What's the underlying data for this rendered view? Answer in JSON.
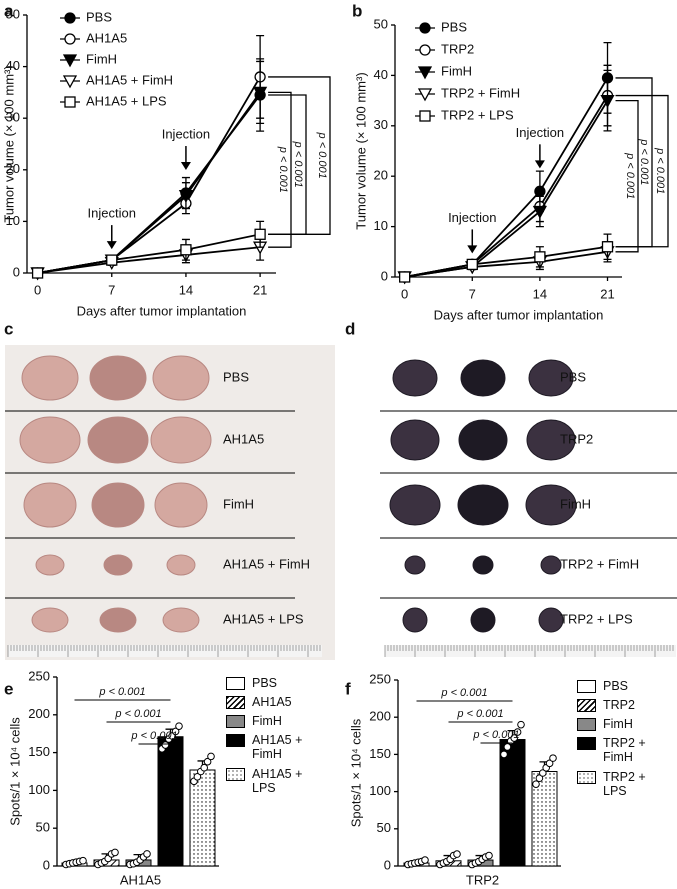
{
  "panel_labels": [
    "a",
    "b",
    "c",
    "d",
    "e",
    "f"
  ],
  "chart_data": [
    {
      "type": "line",
      "xlabel": "Days after tumor implantation",
      "ylabel": "Tumor volume (× 100 mm³)",
      "x": [
        0,
        7,
        14,
        21
      ],
      "xlim": [
        -1,
        22.5
      ],
      "xticks": [
        0,
        7,
        14,
        21
      ],
      "ylim": [
        0,
        50
      ],
      "yticks": [
        0,
        10,
        20,
        30,
        40,
        50
      ],
      "series": [
        {
          "name": "PBS",
          "marker": "circle-filled",
          "color": "#000000",
          "values": [
            0,
            2.5,
            15.5,
            34.5
          ],
          "errors": [
            0.3,
            0.5,
            3,
            7
          ]
        },
        {
          "name": "AH1A5",
          "marker": "circle-open",
          "color": "#000000",
          "values": [
            0,
            2.5,
            13.5,
            38
          ],
          "errors": [
            0.3,
            0.5,
            2,
            8
          ]
        },
        {
          "name": "FimH",
          "marker": "triangle-filled",
          "color": "#000000",
          "values": [
            0,
            2.5,
            15,
            35
          ],
          "errors": [
            0.3,
            0.5,
            2.5,
            6
          ]
        },
        {
          "name": "AH1A5 + FimH",
          "marker": "triangle-open",
          "color": "#000000",
          "values": [
            0,
            2,
            3.5,
            5
          ],
          "errors": [
            0.3,
            0.5,
            1.5,
            2.5
          ]
        },
        {
          "name": "AH1A5 + LPS",
          "marker": "square-open",
          "color": "#000000",
          "values": [
            0,
            2.5,
            4.5,
            7.5
          ],
          "errors": [
            0.3,
            0.5,
            2,
            2.5
          ]
        }
      ],
      "annotations": [
        {
          "text": "Injection",
          "x": 7
        },
        {
          "text": "Injection",
          "x": 14
        }
      ],
      "significance": [
        "p < 0.001",
        "p < 0.001",
        "p < 0.001"
      ]
    },
    {
      "type": "line",
      "xlabel": "Days after tumor implantation",
      "ylabel": "Tumor volume (× 100 mm³)",
      "x": [
        0,
        7,
        14,
        21
      ],
      "xlim": [
        -1,
        22.5
      ],
      "xticks": [
        0,
        7,
        14,
        21
      ],
      "ylim": [
        0,
        50
      ],
      "yticks": [
        0,
        10,
        20,
        30,
        40,
        50
      ],
      "series": [
        {
          "name": "PBS",
          "marker": "circle-filled",
          "color": "#000000",
          "values": [
            0,
            2.5,
            17,
            39.5
          ],
          "errors": [
            0.3,
            0.5,
            4,
            7
          ]
        },
        {
          "name": "TRP2",
          "marker": "circle-open",
          "color": "#000000",
          "values": [
            0,
            2.5,
            14,
            36
          ],
          "errors": [
            0.3,
            0.5,
            3,
            6
          ]
        },
        {
          "name": "FimH",
          "marker": "triangle-filled",
          "color": "#000000",
          "values": [
            0,
            2,
            13,
            35
          ],
          "errors": [
            0.3,
            0.5,
            3,
            6
          ]
        },
        {
          "name": "TRP2 + FimH",
          "marker": "triangle-open",
          "color": "#000000",
          "values": [
            0,
            2,
            3,
            5
          ],
          "errors": [
            0.3,
            0.5,
            1.5,
            2
          ]
        },
        {
          "name": "TRP2 + LPS",
          "marker": "square-open",
          "color": "#000000",
          "values": [
            0,
            2.5,
            4,
            6
          ],
          "errors": [
            0.3,
            0.5,
            2,
            2.5
          ]
        }
      ],
      "annotations": [
        {
          "text": "Injection",
          "x": 7
        },
        {
          "text": "Injection",
          "x": 14
        }
      ],
      "significance": [
        "p < 0.001",
        "p < 0.001",
        "p < 0.001"
      ]
    },
    {
      "type": "bar",
      "ylabel": "Spots/1 × 10⁴ cells",
      "categories": [
        "AH1A5"
      ],
      "ylim": [
        0,
        250
      ],
      "yticks": [
        0,
        50,
        100,
        150,
        200,
        250
      ],
      "series": [
        {
          "name": "PBS",
          "color": "#ffffff",
          "pattern": "none",
          "values": [
            4
          ],
          "errors": [
            2
          ],
          "points": [
            2,
            3,
            4,
            5,
            6,
            7
          ]
        },
        {
          "name": "AH1A5",
          "color": "#ffffff",
          "pattern": "hatch",
          "values": [
            8
          ],
          "errors": [
            8
          ],
          "points": [
            2,
            4,
            6,
            10,
            16,
            18
          ]
        },
        {
          "name": "FimH",
          "color": "#888888",
          "pattern": "none",
          "values": [
            8
          ],
          "errors": [
            7
          ],
          "points": [
            2,
            3,
            5,
            8,
            12,
            16
          ]
        },
        {
          "name": "AH1A5 + FimH",
          "color": "#000000",
          "pattern": "none",
          "values": [
            171
          ],
          "errors": [
            10
          ],
          "points": [
            155,
            160,
            168,
            172,
            178,
            185
          ]
        },
        {
          "name": "AH1A5 + LPS",
          "color": "#ffffff",
          "pattern": "dots",
          "values": [
            127
          ],
          "errors": [
            12
          ],
          "points": [
            112,
            118,
            125,
            130,
            138,
            145
          ]
        }
      ],
      "significance": [
        "p < 0.001",
        "p < 0.001",
        "p < 0.001"
      ]
    },
    {
      "type": "bar",
      "ylabel": "Spots/1 × 10⁴ cells",
      "categories": [
        "TRP2"
      ],
      "ylim": [
        0,
        250
      ],
      "yticks": [
        0,
        50,
        100,
        150,
        200,
        250
      ],
      "series": [
        {
          "name": "PBS",
          "color": "#ffffff",
          "pattern": "none",
          "values": [
            4
          ],
          "errors": [
            3
          ],
          "points": [
            2,
            3,
            4,
            5,
            6,
            8
          ]
        },
        {
          "name": "TRP2",
          "color": "#ffffff",
          "pattern": "hatch",
          "values": [
            7
          ],
          "errors": [
            7
          ],
          "points": [
            2,
            4,
            6,
            9,
            14,
            16
          ]
        },
        {
          "name": "FimH",
          "color": "#888888",
          "pattern": "none",
          "values": [
            8
          ],
          "errors": [
            6
          ],
          "points": [
            2,
            4,
            6,
            9,
            12,
            14
          ]
        },
        {
          "name": "TRP2 + FimH",
          "color": "#000000",
          "pattern": "none",
          "values": [
            170
          ],
          "errors": [
            12
          ],
          "points": [
            150,
            160,
            168,
            172,
            180,
            190
          ]
        },
        {
          "name": "TRP2 + LPS",
          "color": "#ffffff",
          "pattern": "dots",
          "values": [
            127
          ],
          "errors": [
            13
          ],
          "points": [
            110,
            118,
            125,
            132,
            138,
            145
          ]
        }
      ],
      "significance": [
        "p < 0.001",
        "p < 0.001",
        "p < 0.001"
      ]
    }
  ],
  "photo_panels": [
    {
      "rows": [
        "PBS",
        "AH1A5",
        "FimH",
        "AH1A5 + FimH",
        "AH1A5 + LPS"
      ]
    },
    {
      "rows": [
        "PBS",
        "TRP2",
        "FimH",
        "TRP2 + FimH",
        "TRP2 + LPS"
      ]
    }
  ]
}
